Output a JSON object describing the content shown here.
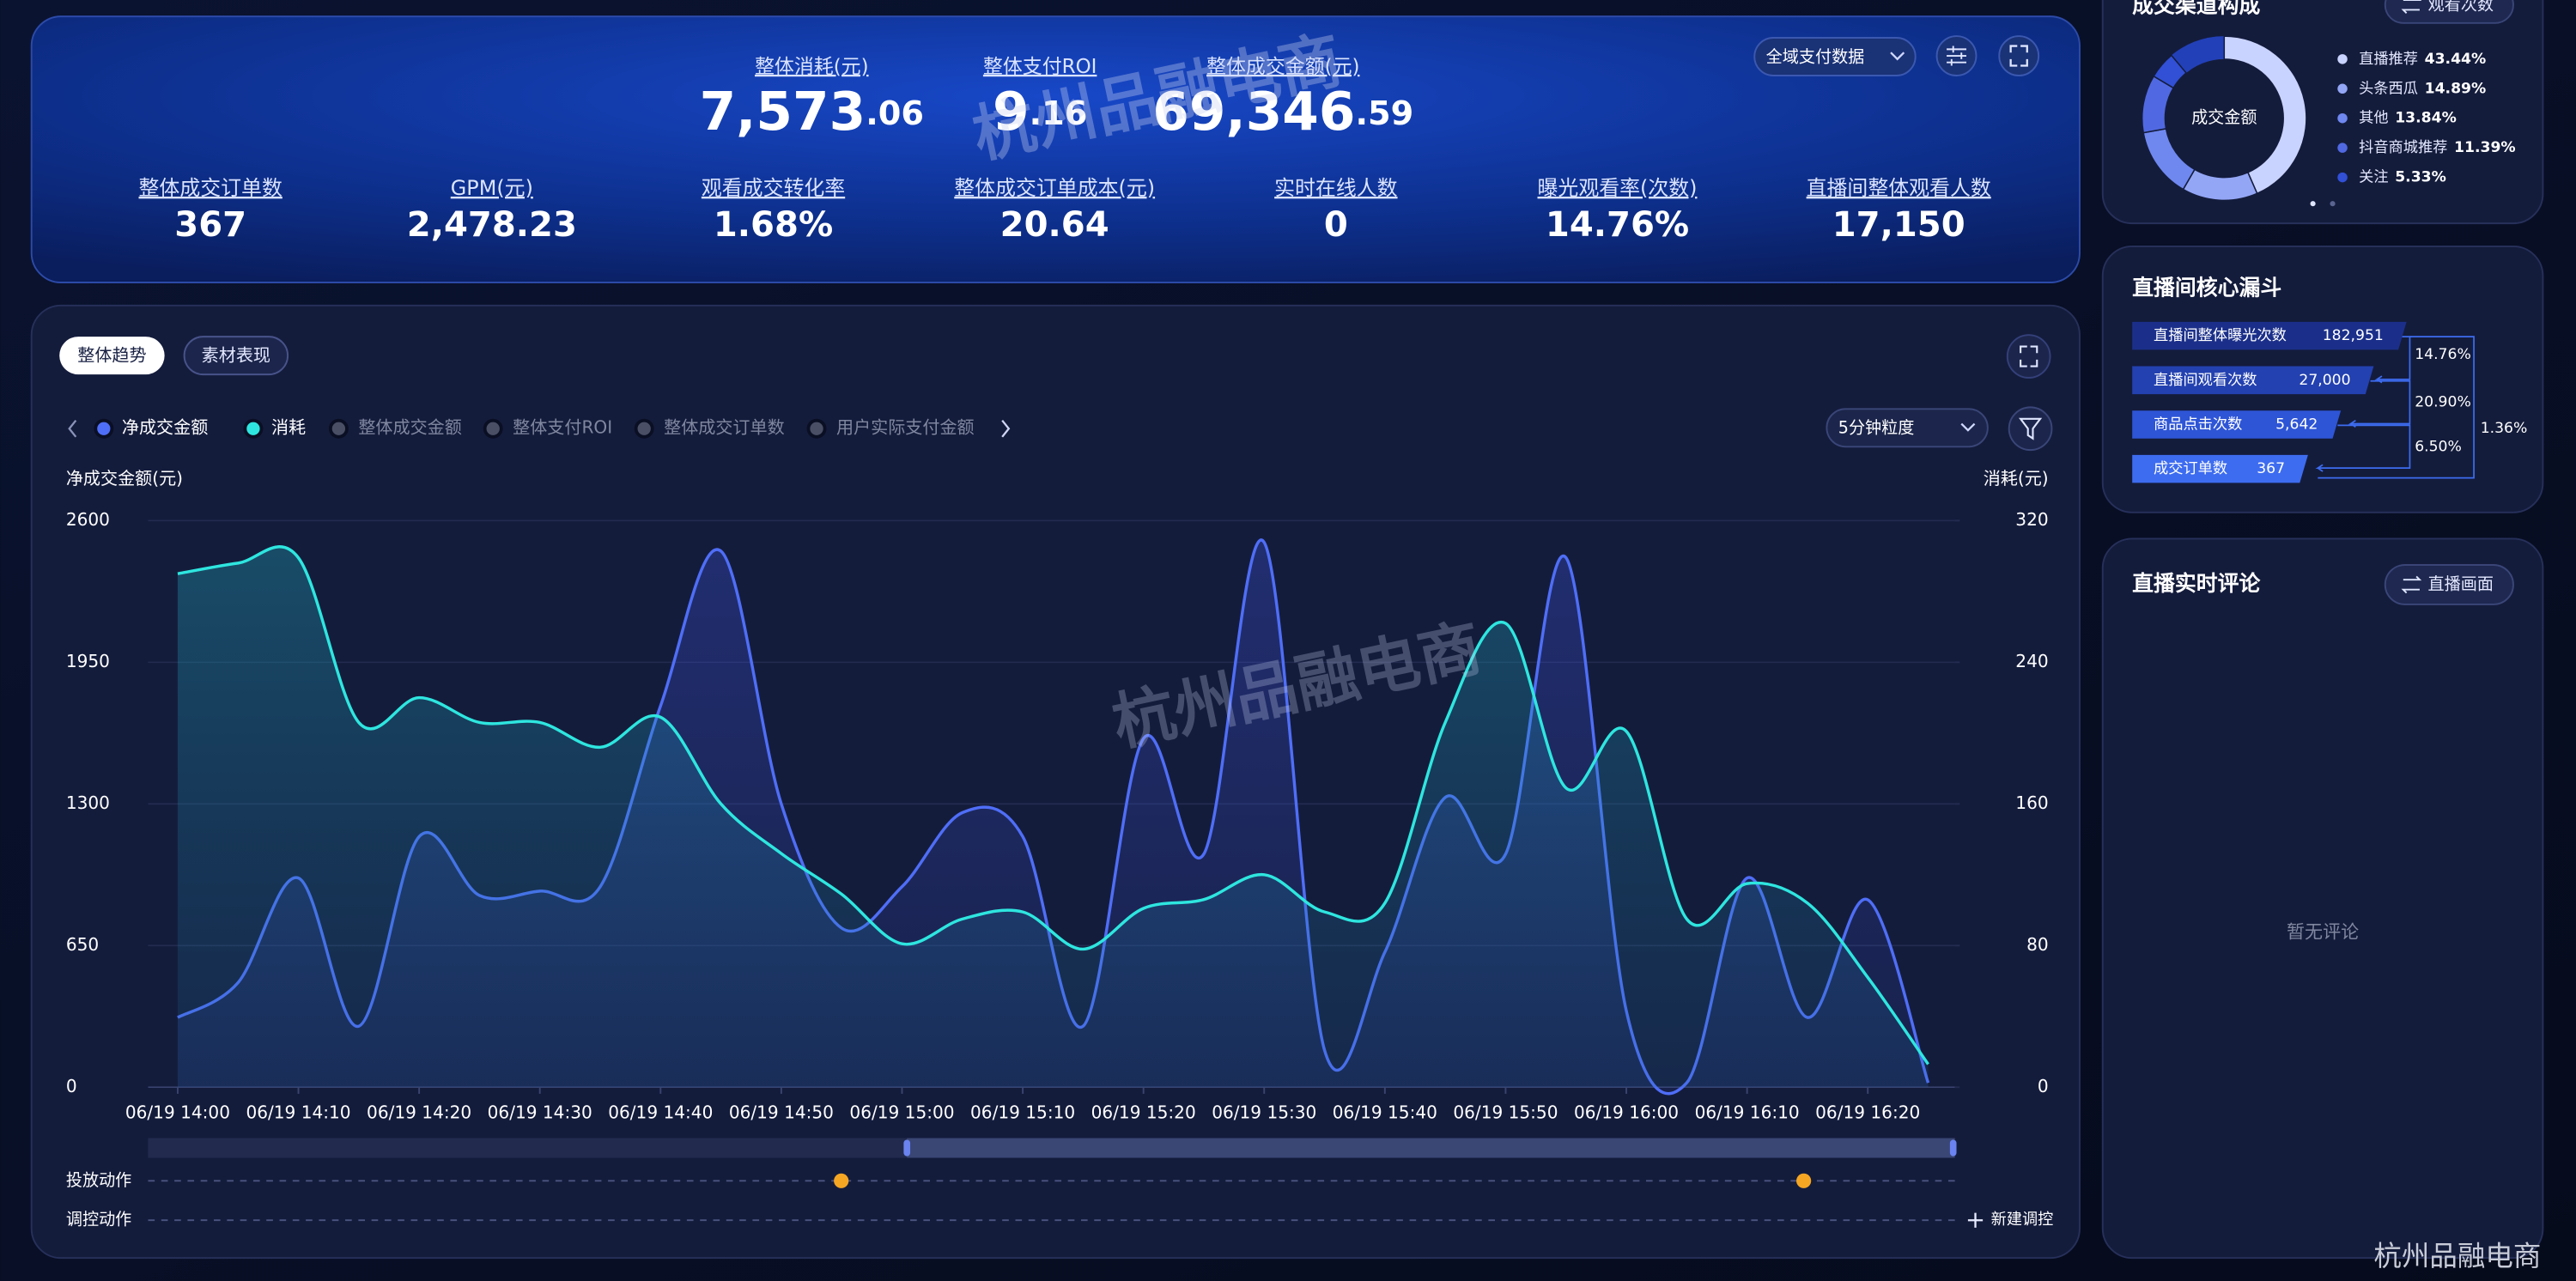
{
  "watermark": "杭州品融电商",
  "corner_brand": "杭州品融电商",
  "header": {
    "filter": "全域支付数据",
    "hero_metrics": [
      {
        "label": "整体消耗(元)",
        "integer": "7,573",
        "decimal": ".06"
      },
      {
        "label": "整体支付ROI",
        "integer": "9",
        "decimal": ".16"
      },
      {
        "label": "整体成交金额(元)",
        "integer": "69,346",
        "decimal": ".59"
      }
    ],
    "metrics": [
      {
        "label": "整体成交订单数",
        "value": "367"
      },
      {
        "label": "GPM(元)",
        "value": "2,478.23"
      },
      {
        "label": "观看成交转化率",
        "value": "1.68%"
      },
      {
        "label": "整体成交订单成本(元)",
        "value": "20.64"
      },
      {
        "label": "实时在线人数",
        "value": "0"
      },
      {
        "label": "曝光观看率(次数)",
        "value": "14.76%"
      },
      {
        "label": "直播间整体观看人数",
        "value": "17,150"
      }
    ]
  },
  "trend_panel": {
    "tabs": [
      "整体趋势",
      "素材表现"
    ],
    "granularity": "5分钟粒度",
    "inactive_series": [
      "整体成交金额",
      "整体支付ROI",
      "整体成交订单数",
      "用户实际支付金额"
    ]
  },
  "chart_data": {
    "type": "line",
    "y_label": "净成交金额(元)",
    "y2_label": "消耗(元)",
    "categories": [
      "06/19 14:00",
      null,
      "06/19 14:10",
      null,
      "06/19 14:20",
      null,
      "06/19 14:30",
      null,
      "06/19 14:40",
      null,
      "06/19 14:50",
      null,
      "06/19 15:00",
      null,
      "06/19 15:10",
      null,
      "06/19 15:20",
      null,
      "06/19 15:30",
      null,
      "06/19 15:40",
      null,
      "06/19 15:50",
      null,
      "06/19 16:00",
      null,
      "06/19 16:10",
      null,
      "06/19 16:20",
      null
    ],
    "series": [
      {
        "name": "净成交金额",
        "color": "#4f6ef7",
        "values": [
          320,
          480,
          960,
          280,
          1150,
          880,
          900,
          920,
          1750,
          2460,
          1300,
          730,
          920,
          1260,
          1150,
          280,
          1600,
          1070,
          2500,
          170,
          620,
          1330,
          1070,
          2430,
          350,
          20,
          960,
          320,
          860,
          20
        ]
      },
      {
        "name": "消耗",
        "color": "#2ee6df",
        "axis": "y2",
        "values": [
          290,
          296,
          299,
          206,
          220,
          206,
          206,
          192,
          209,
          160,
          132,
          109,
          81,
          95,
          99,
          78,
          101,
          106,
          120,
          99,
          104,
          206,
          262,
          169,
          201,
          95,
          115,
          104,
          62,
          13
        ]
      }
    ],
    "ylim": [
      0,
      2600
    ],
    "yticks": [
      0,
      650,
      1300,
      1950,
      2600
    ],
    "y2lim": [
      0,
      320
    ],
    "y2ticks": [
      0,
      80,
      160,
      240,
      320
    ],
    "grid": true
  },
  "timeline": {
    "rows": [
      "投放动作",
      "调控动作"
    ],
    "button": "新建调控"
  },
  "channel": {
    "title": "成交渠道构成",
    "toggle": "观看次数",
    "center": "成交金额",
    "slices": [
      "直播推荐",
      "头条西瓜",
      "其他",
      "抖音商城推荐",
      "关注"
    ],
    "values": [
      43.44,
      14.89,
      13.84,
      11.39,
      5.33
    ],
    "value_labels": [
      "43.44%",
      "14.89%",
      "13.84%",
      "11.39%",
      "5.33%"
    ],
    "colors": [
      "#c9d3ff",
      "#93a6f6",
      "#6f88f0",
      "#5069e2",
      "#3150d6"
    ]
  },
  "funnel": {
    "title": "直播间核心漏斗",
    "steps": [
      {
        "label": "直播间整体曝光次数",
        "value": "182,951"
      },
      {
        "label": "直播间观看次数",
        "value": "27,000"
      },
      {
        "label": "商品点击次数",
        "value": "5,642"
      },
      {
        "label": "成交订单数",
        "value": "367"
      }
    ],
    "rates": [
      "14.76%",
      "20.90%",
      "6.50%",
      "1.36%"
    ]
  },
  "comments": {
    "title": "直播实时评论",
    "toggle": "直播画面",
    "empty": "暂无评论"
  }
}
